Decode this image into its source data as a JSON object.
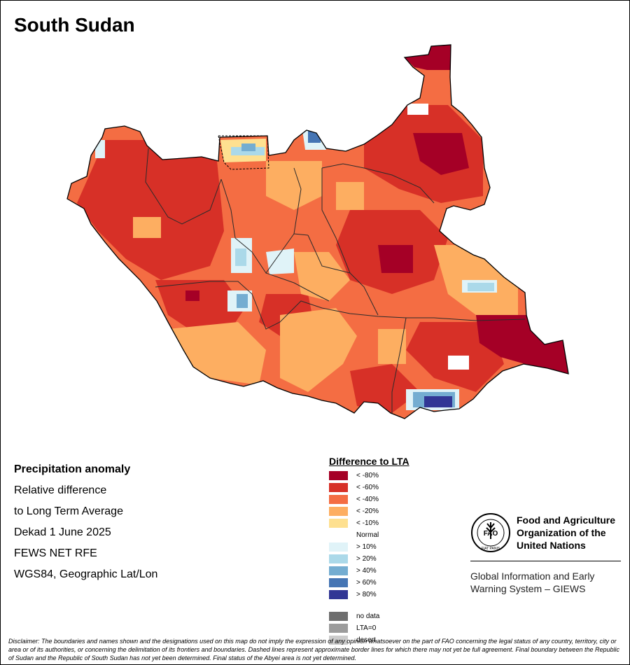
{
  "map": {
    "title": "South Sudan",
    "info_lines": [
      "Precipitation anomaly",
      "Relative difference",
      "to Long Term Average",
      "Dekad 1 June 2025",
      "FEWS NET RFE",
      "WGS84, Geographic Lat/Lon"
    ],
    "legend": {
      "title": "Difference to LTA",
      "items": [
        {
          "label": "< -80%",
          "color": "#a50026"
        },
        {
          "label": "< -60%",
          "color": "#d73027"
        },
        {
          "label": "< -40%",
          "color": "#f46d43"
        },
        {
          "label": "< -20%",
          "color": "#fdae61"
        },
        {
          "label": "< -10%",
          "color": "#fee090"
        },
        {
          "label": "Normal",
          "color": "#ffffff"
        },
        {
          "label": "> 10%",
          "color": "#e0f3f8"
        },
        {
          "label": "> 20%",
          "color": "#abd9e9"
        },
        {
          "label": "> 40%",
          "color": "#74add1"
        },
        {
          "label": "> 60%",
          "color": "#4575b4"
        },
        {
          "label": "> 80%",
          "color": "#313695"
        }
      ],
      "extra_items": [
        {
          "label": "no data",
          "color": "#6e6e6e"
        },
        {
          "label": "LTA=0",
          "color": "#9c9c9c"
        },
        {
          "label": "desert",
          "color": "#cccccc"
        }
      ]
    },
    "org": {
      "logo_text": "FAO",
      "logo_motto": "FIAT PANIS",
      "name_lines": [
        "Food and Agriculture",
        "Organization of the",
        "United Nations"
      ],
      "system_lines": [
        "Global Information and Early",
        "Warning System – GIEWS"
      ]
    },
    "disclaimer": "Disclaimer: The boundaries and names shown and the designations used on this map do not imply the expression of any opinion whatsoever on the part of FAO concerning the legal status of any country, territory, city or area or of its authorities, or concerning the delimitation of its frontiers and boundaries. Dashed lines represent approximate border lines for which there may not yet be full agreement.  Final boundary between the Republic of Sudan and the Republic of South Sudan has not yet been determined. Final status of the Abyei area is not yet determined."
  }
}
